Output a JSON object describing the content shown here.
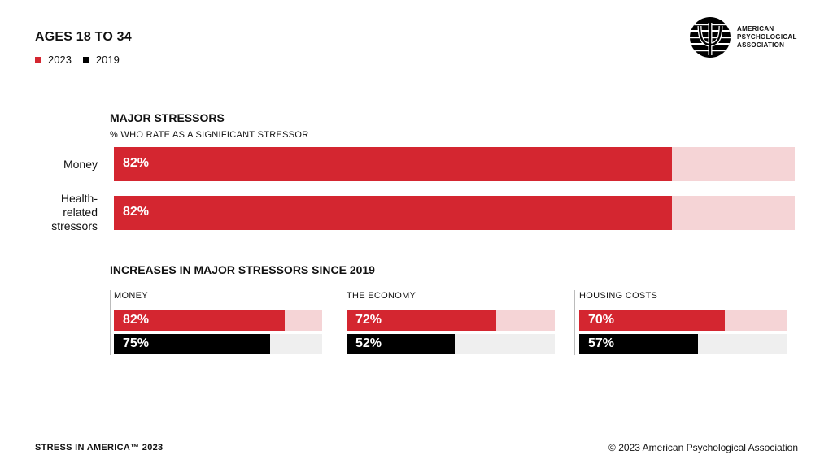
{
  "header": {
    "title": "AGES 18 TO 34",
    "legend": [
      {
        "label": "2023",
        "color": "#d42630"
      },
      {
        "label": "2019",
        "color": "#000000"
      }
    ]
  },
  "logo": {
    "icon": "apa-psi-logo-icon",
    "lines": [
      "AMERICAN",
      "PSYCHOLOGICAL",
      "ASSOCIATION"
    ]
  },
  "colors": {
    "red": "#d42630",
    "red_track": "#f5d4d6",
    "black": "#000000",
    "gray_track": "#efefef"
  },
  "chart_data": [
    {
      "type": "bar",
      "title": "MAJOR STRESSORS",
      "subtitle": "% WHO RATE AS A SIGNIFICANT STRESSOR",
      "categories": [
        "Money",
        "Health-\nrelated\nstressors"
      ],
      "series": [
        {
          "name": "2023",
          "values": [
            82,
            82
          ]
        }
      ],
      "value_labels": [
        "82%",
        "82%"
      ],
      "ylim": [
        0,
        100
      ]
    },
    {
      "type": "bar",
      "title": "INCREASES IN MAJOR STRESSORS SINCE 2019",
      "categories": [
        "MONEY",
        "THE ECONOMY",
        "HOUSING COSTS"
      ],
      "series": [
        {
          "name": "2023",
          "values": [
            82,
            72,
            70
          ],
          "labels": [
            "82%",
            "72%",
            "70%"
          ]
        },
        {
          "name": "2019",
          "values": [
            75,
            52,
            57
          ],
          "labels": [
            "75%",
            "52%",
            "57%"
          ]
        }
      ],
      "ylim": [
        0,
        100
      ]
    }
  ],
  "footer": {
    "left": "STRESS IN AMERICA™ 2023",
    "right": "© 2023 American Psychological Association"
  }
}
